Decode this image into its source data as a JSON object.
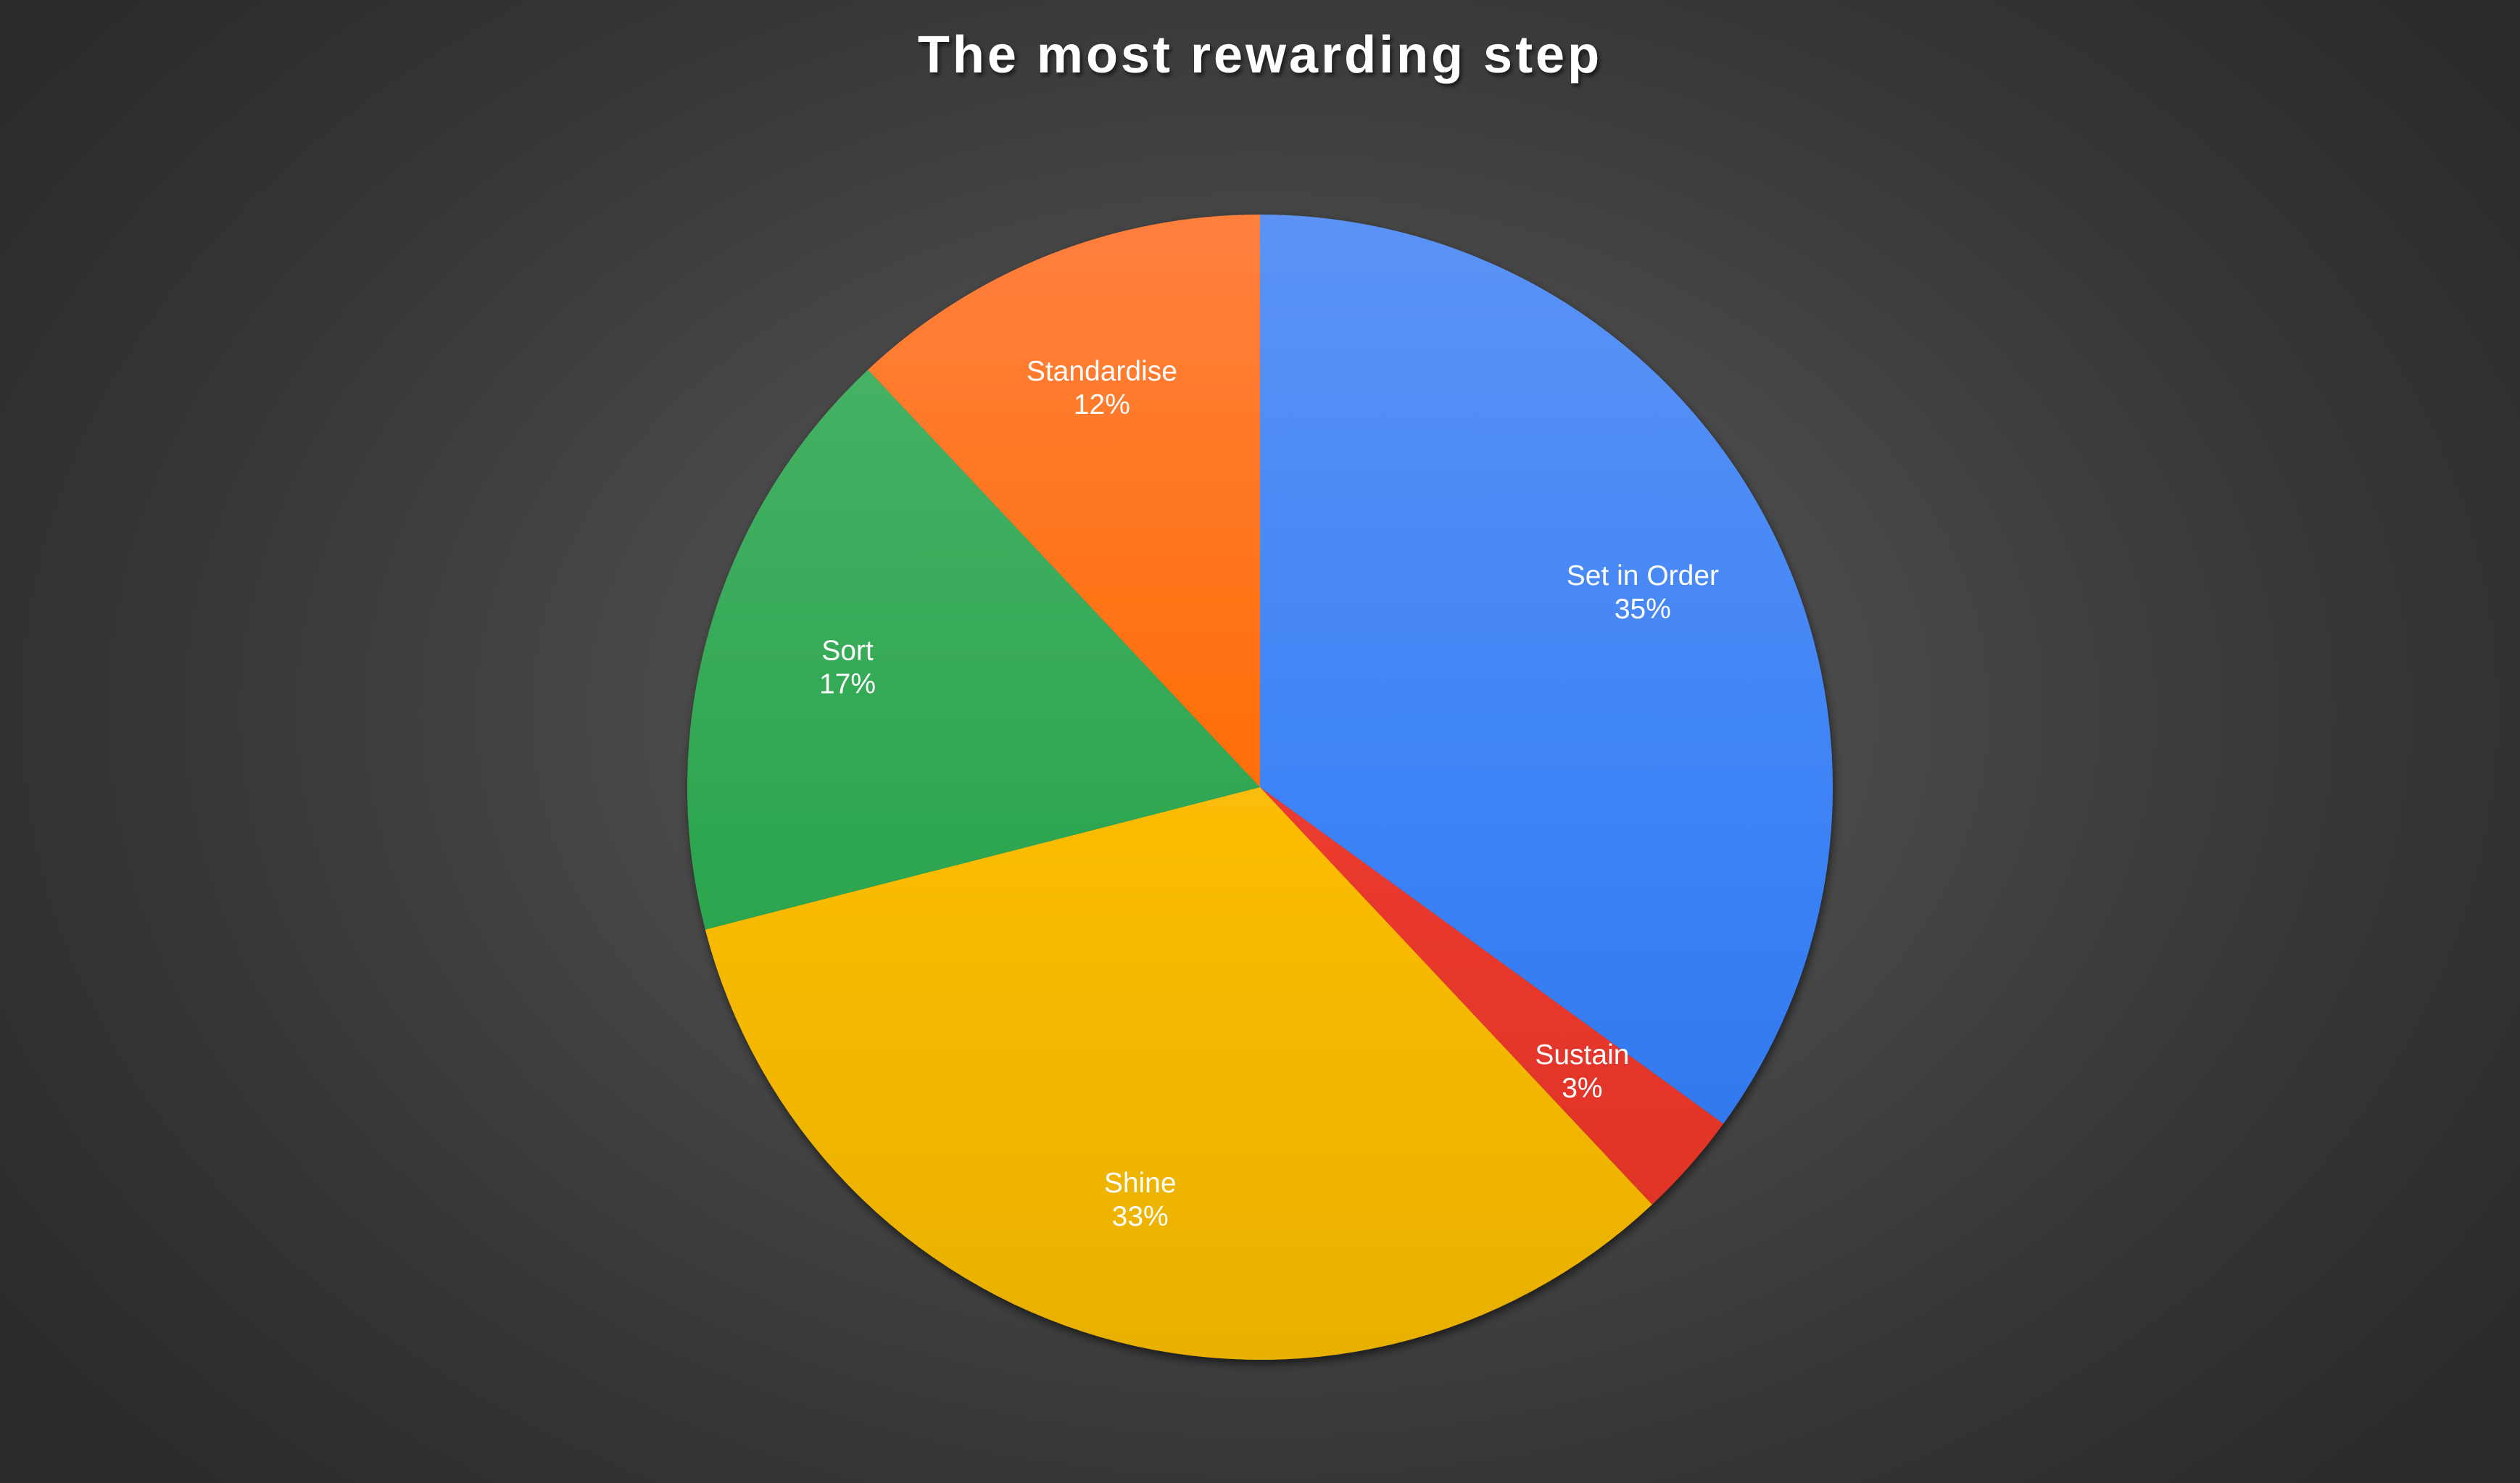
{
  "chart_data": {
    "type": "pie",
    "title": "The most rewarding step",
    "start_angle_deg": 0,
    "direction": "clockwise",
    "slices": [
      {
        "label": "Set in Order",
        "value": 35,
        "percent_label": "35%",
        "color": "#3b82f6",
        "color_light": "#5b93f5",
        "color_dark": "#2a72e6"
      },
      {
        "label": "Sustain",
        "value": 3,
        "percent_label": "3%",
        "color": "#ea3a2f",
        "color_light": "#ef4d44",
        "color_dark": "#dc3122"
      },
      {
        "label": "Shine",
        "value": 33,
        "percent_label": "33%",
        "color": "#fbbc04",
        "color_light": "#fbc430",
        "color_dark": "#e8b000"
      },
      {
        "label": "Sort",
        "value": 17,
        "percent_label": "17%",
        "color": "#2ea650",
        "color_light": "#4cb56b",
        "color_dark": "#22a146"
      },
      {
        "label": "Standardise",
        "value": 12,
        "percent_label": "12%",
        "color": "#ff6d01",
        "color_light": "#ff7f3e",
        "color_dark": "#ea6400"
      }
    ],
    "legend": "none",
    "labels_inside": true
  }
}
